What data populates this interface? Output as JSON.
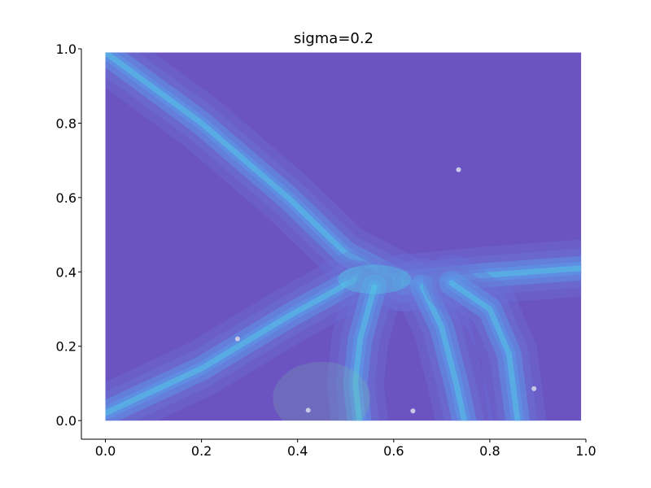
{
  "chart_data": {
    "type": "heatmap",
    "title": "sigma=0.2",
    "xlabel": "",
    "ylabel": "",
    "xlim": [
      -0.05,
      1.0
    ],
    "ylim": [
      -0.05,
      1.0
    ],
    "plot_extent": {
      "x": [
        0.0,
        0.99
      ],
      "y": [
        0.0,
        0.99
      ]
    },
    "xticks": [
      0.0,
      0.2,
      0.4,
      0.6,
      0.8,
      1.0
    ],
    "xtick_labels": [
      "0.0",
      "0.2",
      "0.4",
      "0.6",
      "0.8",
      "1.0"
    ],
    "yticks": [
      0.0,
      0.2,
      0.4,
      0.6,
      0.8,
      1.0
    ],
    "ytick_labels": [
      "0.0",
      "0.2",
      "0.4",
      "0.6",
      "0.8",
      "1.0"
    ],
    "grid": false,
    "sigma": 0.2,
    "points": [
      {
        "x": 0.275,
        "y": 0.22
      },
      {
        "x": 0.422,
        "y": 0.028
      },
      {
        "x": 0.64,
        "y": 0.026
      },
      {
        "x": 0.735,
        "y": 0.675
      },
      {
        "x": 0.892,
        "y": 0.086
      }
    ],
    "colors": {
      "background": "#6c53c2",
      "ridge_low": "#6a74d8",
      "ridge_mid": "#5b9ce8",
      "ridge_high": "#4fd1e6",
      "peak": "#7fd6a0",
      "point": "#c9c9e6"
    }
  }
}
